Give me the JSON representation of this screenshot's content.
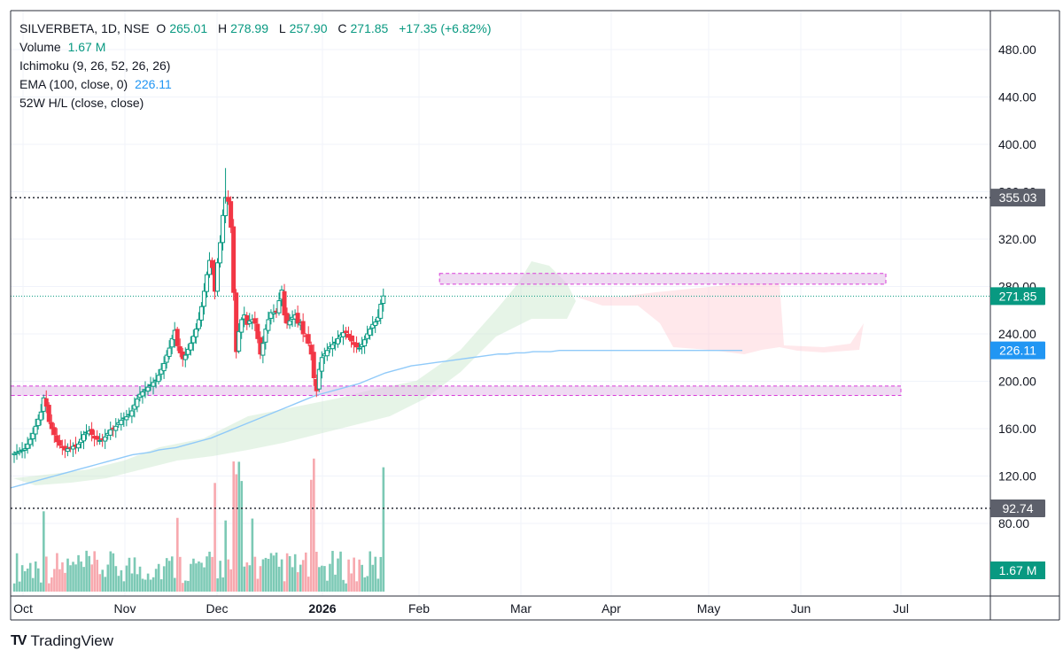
{
  "header": {
    "symbol": "SILVERBETA, 1D, NSE",
    "open_label": "O",
    "open": "265.01",
    "high_label": "H",
    "high": "278.99",
    "low_label": "L",
    "low": "257.90",
    "close_label": "C",
    "close": "271.85",
    "change": "+17.35 (+6.82%)",
    "volume_label": "Volume",
    "volume": "1.67 M",
    "ichimoku": "Ichimoku (9, 26, 52, 26, 26)",
    "ema_label": "EMA (100, close, 0)",
    "ema_value": "226.11",
    "hl52": "52W H/L (close, close)"
  },
  "brand": {
    "name": "TradingView",
    "logo": "TV"
  },
  "colors": {
    "up": "#089981",
    "down": "#f23645",
    "ema": "#2196f3",
    "zone": "#d83bd9"
  },
  "chart_data": {
    "type": "candlestick",
    "price_axis": {
      "min": 80,
      "max": 490,
      "ticks": [
        "480.00",
        "440.00",
        "400.00",
        "360.00",
        "320.00",
        "280.00",
        "240.00",
        "200.00",
        "160.00",
        "120.00",
        "80.00"
      ]
    },
    "time_axis": {
      "labels": [
        "Oct",
        "Nov",
        "Dec",
        "2026",
        "Feb",
        "Mar",
        "Apr",
        "May",
        "Jun",
        "Jul"
      ]
    },
    "price_labels": [
      {
        "text": "355.03",
        "value": 355.03,
        "kind": "52w-high"
      },
      {
        "text": "271.85",
        "value": 271.85,
        "kind": "last"
      },
      {
        "text": "226.11",
        "value": 226.11,
        "kind": "ema"
      },
      {
        "text": "92.74",
        "value": 92.74,
        "kind": "52w-low"
      }
    ],
    "volume_label": "1.67 M",
    "hlines": [
      {
        "name": "52W high",
        "value": 355.03
      },
      {
        "name": "52W low",
        "value": 92.74
      }
    ],
    "zones": [
      {
        "name": "resistance-zone",
        "from_day": 159,
        "to_day": 271,
        "low": 282,
        "high": 291
      },
      {
        "name": "support-zone",
        "from_day": 0,
        "to_day": 275,
        "low": 188,
        "high": 196
      }
    ],
    "candles_close": [
      139,
      140,
      141,
      142,
      143,
      147,
      151,
      156,
      162,
      168,
      174,
      186,
      179,
      166,
      160,
      155,
      149,
      146,
      144,
      142,
      143,
      144,
      145,
      145,
      147,
      151,
      155,
      157,
      158,
      155,
      152,
      151,
      150,
      151,
      153,
      156,
      159,
      160,
      162,
      165,
      167,
      169,
      170,
      172,
      175,
      180,
      185,
      189,
      191,
      193,
      195,
      197,
      199,
      201,
      205,
      210,
      215,
      222,
      228,
      236,
      243,
      230,
      224,
      219,
      222,
      227,
      232,
      238,
      244,
      252,
      263,
      276,
      290,
      302,
      296,
      276,
      300,
      317,
      340,
      355,
      352,
      330,
      275,
      225,
      242,
      252,
      256,
      248,
      251,
      252,
      249,
      236,
      223,
      232,
      244,
      252,
      258,
      258,
      259,
      268,
      277,
      256,
      249,
      251,
      254,
      256,
      249,
      249,
      240,
      238,
      232,
      223,
      203,
      192,
      210,
      220,
      223,
      226,
      229,
      231,
      233,
      236,
      239,
      241,
      241,
      237,
      234,
      231,
      229,
      228,
      231,
      235,
      240,
      244,
      248,
      250,
      254,
      265,
      272
    ],
    "ema100": [
      110,
      112,
      114,
      116,
      118,
      120,
      122,
      124,
      126,
      128,
      130,
      132,
      134,
      136,
      138,
      139,
      140,
      142,
      143,
      144,
      146,
      148,
      150,
      152,
      155,
      158,
      161,
      164,
      167,
      170,
      173,
      176,
      179,
      182,
      185,
      188,
      190,
      192,
      194,
      196,
      198,
      201,
      204,
      207,
      209,
      211,
      213,
      214,
      215,
      216,
      217,
      218,
      219,
      220,
      221,
      222,
      223,
      223,
      224,
      224,
      225,
      225,
      225,
      226,
      226,
      226,
      226,
      226,
      226,
      226,
      226,
      226,
      226,
      226,
      226,
      226,
      226,
      226,
      226,
      226,
      226,
      226,
      226,
      226,
      226
    ],
    "volume_max": 5.2
  }
}
